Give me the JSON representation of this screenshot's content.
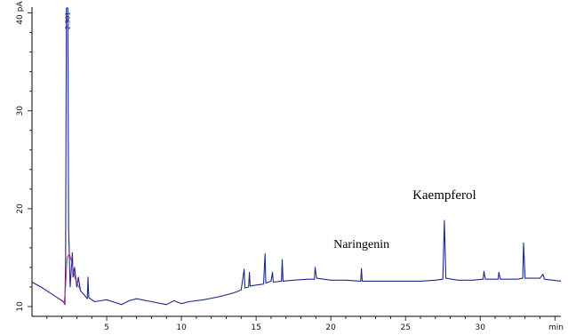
{
  "chart_data": {
    "type": "line",
    "title": "",
    "xlabel": "",
    "ylabel": "",
    "x_unit": "min",
    "y_unit": "pA",
    "xlim": [
      0,
      35.4
    ],
    "ylim": [
      9,
      40.6
    ],
    "x_ticks": [
      "5",
      "10",
      "15",
      "20",
      "25",
      "30"
    ],
    "y_ticks": [
      "10",
      "20",
      "30",
      "40 pA"
    ],
    "x_tick_values": [
      5,
      10,
      15,
      20,
      25,
      30
    ],
    "y_tick_values": [
      10,
      20,
      30,
      40
    ],
    "line_color": "#1c2a8a",
    "secondary_color": "#b0358c",
    "series": [
      {
        "values": [
          [
            0,
            12.5
          ],
          [
            0.6,
            12.0
          ],
          [
            1.2,
            11.4
          ],
          [
            1.7,
            10.9
          ],
          [
            2.1,
            10.5
          ],
          [
            2.2,
            10.2
          ],
          [
            2.25,
            15.0
          ],
          [
            2.3,
            40.5
          ],
          [
            2.4,
            40.5
          ],
          [
            2.45,
            18.0
          ],
          [
            2.55,
            12.0
          ],
          [
            2.7,
            15.5
          ],
          [
            2.75,
            13.0
          ],
          [
            2.85,
            14.0
          ],
          [
            3.0,
            12.0
          ],
          [
            3.1,
            13.0
          ],
          [
            3.25,
            11.6
          ],
          [
            3.5,
            11.2
          ],
          [
            3.7,
            10.8
          ],
          [
            3.75,
            13.0
          ],
          [
            3.8,
            10.9
          ],
          [
            4.2,
            10.5
          ],
          [
            5.0,
            10.7
          ],
          [
            6.0,
            10.2
          ],
          [
            6.5,
            10.6
          ],
          [
            7.0,
            10.8
          ],
          [
            8.0,
            10.5
          ],
          [
            9.0,
            10.2
          ],
          [
            9.5,
            10.6
          ],
          [
            10.0,
            10.3
          ],
          [
            10.5,
            10.5
          ],
          [
            11.5,
            10.7
          ],
          [
            12.5,
            11.0
          ],
          [
            13.5,
            11.4
          ],
          [
            14.0,
            11.7
          ],
          [
            14.2,
            13.8
          ],
          [
            14.25,
            11.9
          ],
          [
            14.5,
            12.0
          ],
          [
            14.55,
            13.5
          ],
          [
            14.6,
            12.1
          ],
          [
            15.0,
            12.2
          ],
          [
            15.5,
            12.3
          ],
          [
            15.6,
            15.4
          ],
          [
            15.65,
            12.4
          ],
          [
            16.0,
            12.6
          ],
          [
            16.1,
            13.5
          ],
          [
            16.15,
            12.5
          ],
          [
            16.7,
            12.6
          ],
          [
            16.75,
            14.8
          ],
          [
            16.8,
            12.6
          ],
          [
            17.5,
            12.7
          ],
          [
            18.5,
            12.8
          ],
          [
            18.9,
            12.8
          ],
          [
            18.95,
            14.0
          ],
          [
            19.05,
            12.9
          ],
          [
            20.0,
            12.7
          ],
          [
            21.0,
            12.7
          ],
          [
            22.0,
            12.6
          ],
          [
            22.05,
            13.9
          ],
          [
            22.1,
            12.6
          ],
          [
            23.0,
            12.6
          ],
          [
            24.0,
            12.6
          ],
          [
            25.0,
            12.6
          ],
          [
            26.0,
            12.6
          ],
          [
            27.0,
            12.7
          ],
          [
            27.5,
            12.8
          ],
          [
            27.6,
            18.8
          ],
          [
            27.7,
            12.9
          ],
          [
            28.5,
            12.7
          ],
          [
            29.5,
            12.7
          ],
          [
            30.2,
            12.8
          ],
          [
            30.25,
            13.6
          ],
          [
            30.35,
            12.8
          ],
          [
            31.2,
            12.8
          ],
          [
            31.25,
            13.5
          ],
          [
            31.35,
            12.8
          ],
          [
            32.5,
            12.8
          ],
          [
            32.85,
            12.9
          ],
          [
            32.9,
            16.5
          ],
          [
            33.0,
            12.9
          ],
          [
            34.0,
            12.9
          ],
          [
            34.2,
            13.3
          ],
          [
            34.3,
            12.8
          ],
          [
            35.4,
            12.6
          ]
        ]
      }
    ],
    "annotations": [
      {
        "text": "Kaempferol",
        "x": 27.6,
        "y": 21.0
      },
      {
        "text": "Naringenin",
        "x": 22.05,
        "y": 16.0
      }
    ],
    "peak_labels": [
      {
        "text": "2.301",
        "x": 2.35,
        "y": 40.3
      }
    ],
    "grid": false,
    "legend": "none"
  }
}
